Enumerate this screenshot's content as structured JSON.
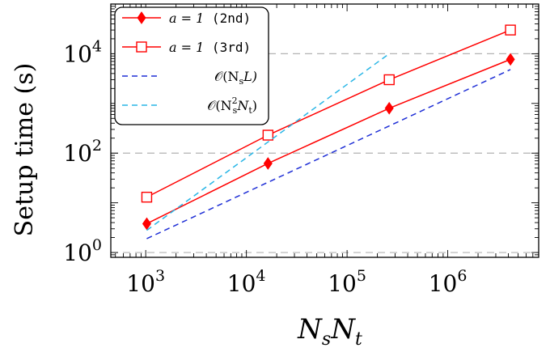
{
  "chart_data": {
    "type": "line",
    "x_scale": "log",
    "y_scale": "log",
    "xlim": [
      450,
      8000000
    ],
    "ylim": [
      0.8,
      100000
    ],
    "grid": "horizontal dashed at major y ticks",
    "legend_position": "top-left",
    "xlabel": {
      "base": "N",
      "sub1": "s",
      "mid": "N",
      "sub2": "t"
    },
    "ylabel": "Setup time (s)",
    "x_ticks": [
      {
        "value": 1000,
        "base": "10",
        "exp": "3"
      },
      {
        "value": 10000,
        "base": "10",
        "exp": "4"
      },
      {
        "value": 100000,
        "base": "10",
        "exp": "5"
      },
      {
        "value": 1000000,
        "base": "10",
        "exp": "6"
      }
    ],
    "y_ticks": [
      {
        "value": 1,
        "base": "10",
        "exp": "0"
      },
      {
        "value": 100,
        "base": "10",
        "exp": "2"
      },
      {
        "value": 10000,
        "base": "10",
        "exp": "4"
      }
    ],
    "series": [
      {
        "key": "a1-2nd",
        "legend": {
          "math": "a = 1",
          "tag": " (2nd)"
        },
        "color": "#ff0000",
        "dash": "",
        "marker": "diamond",
        "x": [
          1024,
          16384,
          262144,
          4194304
        ],
        "y": [
          3.8,
          62,
          800,
          7700
        ]
      },
      {
        "key": "a1-3rd",
        "legend": {
          "math": "a = 1",
          "tag": " (3rd)"
        },
        "color": "#ff0000",
        "dash": "",
        "marker": "square",
        "x": [
          1024,
          16384,
          262144,
          4194304
        ],
        "y": [
          13,
          230,
          3000,
          30000
        ]
      },
      {
        "key": "ref-nsl",
        "legend": {
          "math": "𝒪(N",
          "sub": "s",
          "mid": "L)"
        },
        "color": "#1f2fd6",
        "dash": "7 5",
        "marker": "none",
        "x": [
          1024,
          4194304
        ],
        "y": [
          1.9,
          4800
        ]
      },
      {
        "key": "ref-ns2nt",
        "legend": {
          "math": "𝒪(N",
          "sup": "2",
          "sub": "s",
          "mid": "N",
          "sub2": "t",
          "end": ")"
        },
        "color": "#29b6e6",
        "dash": "7 5",
        "marker": "none",
        "x": [
          1024,
          262144
        ],
        "y": [
          2.8,
          10000
        ]
      }
    ]
  }
}
